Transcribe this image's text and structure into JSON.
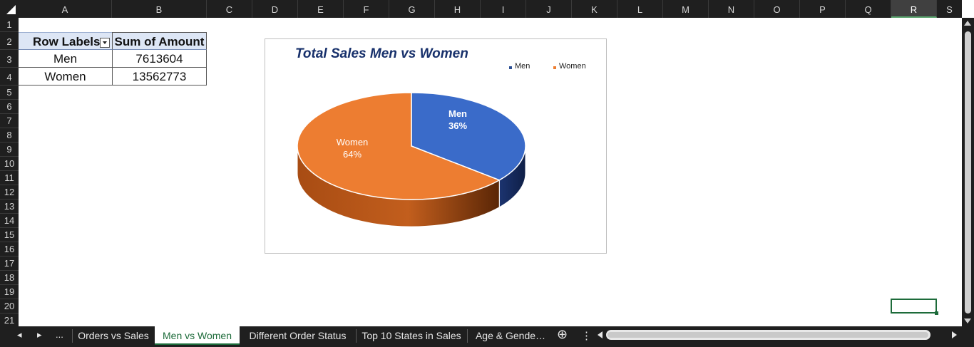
{
  "columns": [
    "A",
    "B",
    "C",
    "D",
    "E",
    "F",
    "G",
    "H",
    "I",
    "J",
    "K",
    "L",
    "M",
    "N",
    "O",
    "P",
    "Q",
    "R",
    "S"
  ],
  "selected_column": "R",
  "rows": [
    "1",
    "2",
    "3",
    "4",
    "5",
    "6",
    "7",
    "8",
    "9",
    "10",
    "11",
    "12",
    "13",
    "14",
    "15",
    "16",
    "17",
    "18",
    "19",
    "20",
    "21"
  ],
  "pivot": {
    "header_row_labels": "Row Labels",
    "header_sum": "Sum of Amount",
    "rows": [
      {
        "label": "Men",
        "value": "7613604"
      },
      {
        "label": "Women",
        "value": "13562773"
      }
    ]
  },
  "chart_data": {
    "type": "pie",
    "title": "Total Sales Men vs Women",
    "legend": [
      "Men",
      "Women"
    ],
    "legend_position": "top-right",
    "slices": [
      {
        "label": "Men",
        "value": 36,
        "display": "36%",
        "color": "#3a6bc9"
      },
      {
        "label": "Women",
        "value": 64,
        "display": "64%",
        "color": "#ed7d31"
      }
    ]
  },
  "sheet_tabs": {
    "nav_prev": "◂",
    "nav_next": "▸",
    "overflow": "...",
    "tabs": [
      {
        "label": "Orders vs Sales",
        "active": false
      },
      {
        "label": "Men vs Women",
        "active": true
      },
      {
        "label": "Different Order Status",
        "active": false
      },
      {
        "label": "Top 10 States in Sales",
        "active": false
      },
      {
        "label": "Age & Gende…",
        "active": false
      }
    ],
    "add_sheet": "⊕",
    "options": "⋮"
  },
  "colors": {
    "accent": "#1d6b3a",
    "header_bg": "#1f1f1f"
  }
}
